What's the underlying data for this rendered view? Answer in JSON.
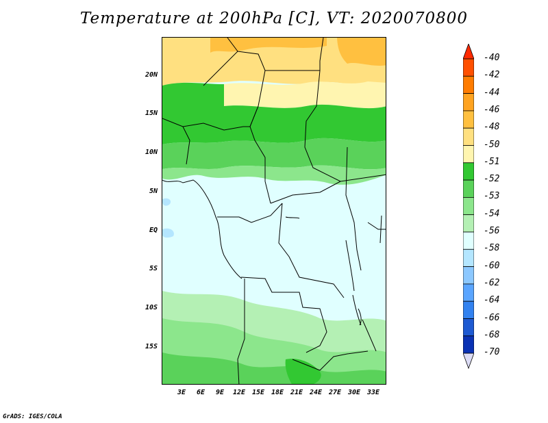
{
  "title": "Temperature at 200hPa [C], VT: 2020070800",
  "credit": "GrADS: IGES/COLA",
  "map": {
    "lat_labels": [
      "20N",
      "15N",
      "10N",
      "5N",
      "EQ",
      "5S",
      "10S",
      "15S"
    ],
    "lon_labels": [
      "3E",
      "6E",
      "9E",
      "12E",
      "15E",
      "18E",
      "21E",
      "24E",
      "27E",
      "30E",
      "33E"
    ]
  },
  "colorbar": {
    "labels": [
      "-40",
      "-42",
      "-44",
      "-46",
      "-48",
      "-50",
      "-51",
      "-52",
      "-53",
      "-54",
      "-56",
      "-58",
      "-60",
      "-62",
      "-64",
      "-66",
      "-68",
      "-70"
    ],
    "colors": [
      "#ff2a00",
      "#ff5000",
      "#ff7c00",
      "#ffa320",
      "#ffc040",
      "#ffe080",
      "#fff5b0",
      "#32c832",
      "#5ad25a",
      "#8ce68c",
      "#b4f0b4",
      "#e0ffff",
      "#b4e6ff",
      "#8cc8ff",
      "#5aa5ff",
      "#3282f0",
      "#1e5ad2",
      "#0a32b4",
      "#000a78"
    ]
  }
}
